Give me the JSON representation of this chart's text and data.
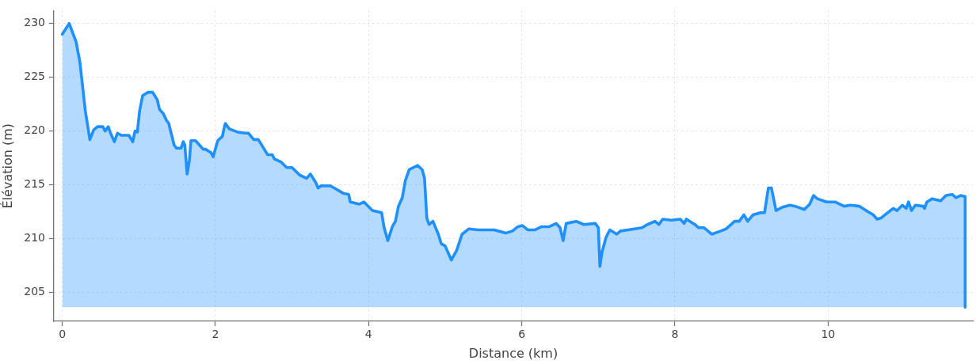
{
  "chart_data": {
    "type": "area",
    "xlabel": "Distance (km)",
    "ylabel": "Élévation (m)",
    "color": "#1e90ff",
    "x": [
      0.0,
      0.09,
      0.18,
      0.23,
      0.3,
      0.36,
      0.41,
      0.46,
      0.53,
      0.56,
      0.6,
      0.63,
      0.68,
      0.72,
      0.77,
      0.87,
      0.92,
      0.95,
      0.98,
      1.01,
      1.05,
      1.12,
      1.18,
      1.24,
      1.27,
      1.32,
      1.36,
      1.39,
      1.46,
      1.49,
      1.55,
      1.58,
      1.6,
      1.63,
      1.66,
      1.68,
      1.74,
      1.79,
      1.84,
      1.87,
      1.94,
      1.97,
      2.03,
      2.09,
      2.12,
      2.13,
      2.18,
      2.29,
      2.39,
      2.43,
      2.5,
      2.56,
      2.68,
      2.74,
      2.77,
      2.86,
      2.93,
      3.0,
      3.1,
      3.19,
      3.24,
      3.31,
      3.34,
      3.38,
      3.5,
      3.55,
      3.67,
      3.74,
      3.76,
      3.88,
      3.94,
      3.98,
      4.05,
      4.17,
      4.2,
      4.25,
      4.31,
      4.35,
      4.39,
      4.44,
      4.48,
      4.53,
      4.64,
      4.7,
      4.73,
      4.76,
      4.79,
      4.84,
      4.91,
      4.95,
      5.0,
      5.08,
      5.15,
      5.22,
      5.31,
      5.43,
      5.64,
      5.79,
      5.88,
      5.95,
      6.01,
      6.08,
      6.17,
      6.26,
      6.36,
      6.45,
      6.5,
      6.54,
      6.58,
      6.71,
      6.81,
      6.96,
      7.0,
      7.02,
      7.05,
      7.1,
      7.15,
      7.24,
      7.29,
      7.39,
      7.57,
      7.64,
      7.74,
      7.79,
      7.84,
      7.95,
      8.07,
      8.12,
      8.15,
      8.26,
      8.31,
      8.38,
      8.48,
      8.6,
      8.67,
      8.78,
      8.84,
      8.9,
      8.95,
      9.02,
      9.12,
      9.17,
      9.22,
      9.26,
      9.32,
      9.4,
      9.5,
      9.57,
      9.69,
      9.76,
      9.81,
      9.86,
      9.98,
      10.09,
      10.21,
      10.29,
      10.41,
      10.52,
      10.59,
      10.64,
      10.69,
      10.76,
      10.85,
      10.9,
      10.97,
      11.02,
      11.05,
      11.09,
      11.14,
      11.24,
      11.26,
      11.29,
      11.36,
      11.47,
      11.54,
      11.62,
      11.67,
      11.73,
      11.79,
      11.79
    ],
    "values": [
      229.0,
      230.0,
      228.3,
      226.4,
      221.9,
      219.2,
      220.1,
      220.4,
      220.4,
      220.0,
      220.4,
      219.8,
      219.0,
      219.8,
      219.6,
      219.6,
      219.0,
      220.0,
      219.9,
      221.9,
      223.3,
      223.6,
      223.6,
      222.9,
      222.0,
      221.6,
      221.0,
      220.7,
      218.7,
      218.4,
      218.4,
      219.0,
      218.7,
      216.0,
      217.3,
      219.1,
      219.1,
      218.7,
      218.3,
      218.3,
      218.0,
      217.6,
      219.1,
      219.5,
      220.5,
      220.7,
      220.2,
      219.9,
      219.8,
      219.8,
      219.2,
      219.2,
      217.8,
      217.8,
      217.4,
      217.1,
      216.6,
      216.6,
      215.9,
      215.6,
      216.0,
      215.2,
      214.7,
      214.9,
      214.9,
      214.7,
      214.2,
      214.1,
      213.4,
      213.2,
      213.4,
      213.1,
      212.6,
      212.4,
      211.1,
      209.8,
      211.1,
      211.6,
      213.0,
      213.8,
      215.4,
      216.4,
      216.8,
      216.4,
      215.6,
      211.9,
      211.3,
      211.6,
      210.4,
      209.5,
      209.3,
      208.0,
      208.9,
      210.4,
      210.9,
      210.8,
      210.8,
      210.5,
      210.7,
      211.1,
      211.2,
      210.8,
      210.8,
      211.1,
      211.1,
      211.4,
      211.0,
      209.8,
      211.4,
      211.6,
      211.3,
      211.4,
      211.0,
      207.4,
      208.8,
      210.1,
      210.8,
      210.4,
      210.7,
      210.8,
      211.0,
      211.3,
      211.6,
      211.3,
      211.8,
      211.7,
      211.8,
      211.4,
      211.8,
      211.3,
      211.0,
      211.0,
      210.4,
      210.7,
      210.9,
      211.6,
      211.6,
      212.2,
      211.6,
      212.2,
      212.4,
      212.4,
      214.7,
      214.7,
      212.6,
      212.9,
      213.1,
      213.0,
      212.7,
      213.2,
      214.0,
      213.7,
      213.4,
      213.4,
      213.0,
      213.1,
      213.0,
      212.5,
      212.2,
      211.8,
      211.9,
      212.3,
      212.8,
      212.6,
      213.1,
      212.8,
      213.4,
      212.6,
      213.1,
      213.0,
      212.8,
      213.4,
      213.7,
      213.5,
      214.0,
      214.1,
      213.8,
      214.0,
      213.9,
      203.6
    ],
    "xlim": [
      -0.11,
      11.89
    ],
    "ylim": [
      202.3,
      231.2
    ],
    "xticks": [
      0,
      2,
      4,
      6,
      8,
      10
    ],
    "yticks": [
      205,
      210,
      215,
      220,
      225,
      230
    ],
    "grid": true
  }
}
